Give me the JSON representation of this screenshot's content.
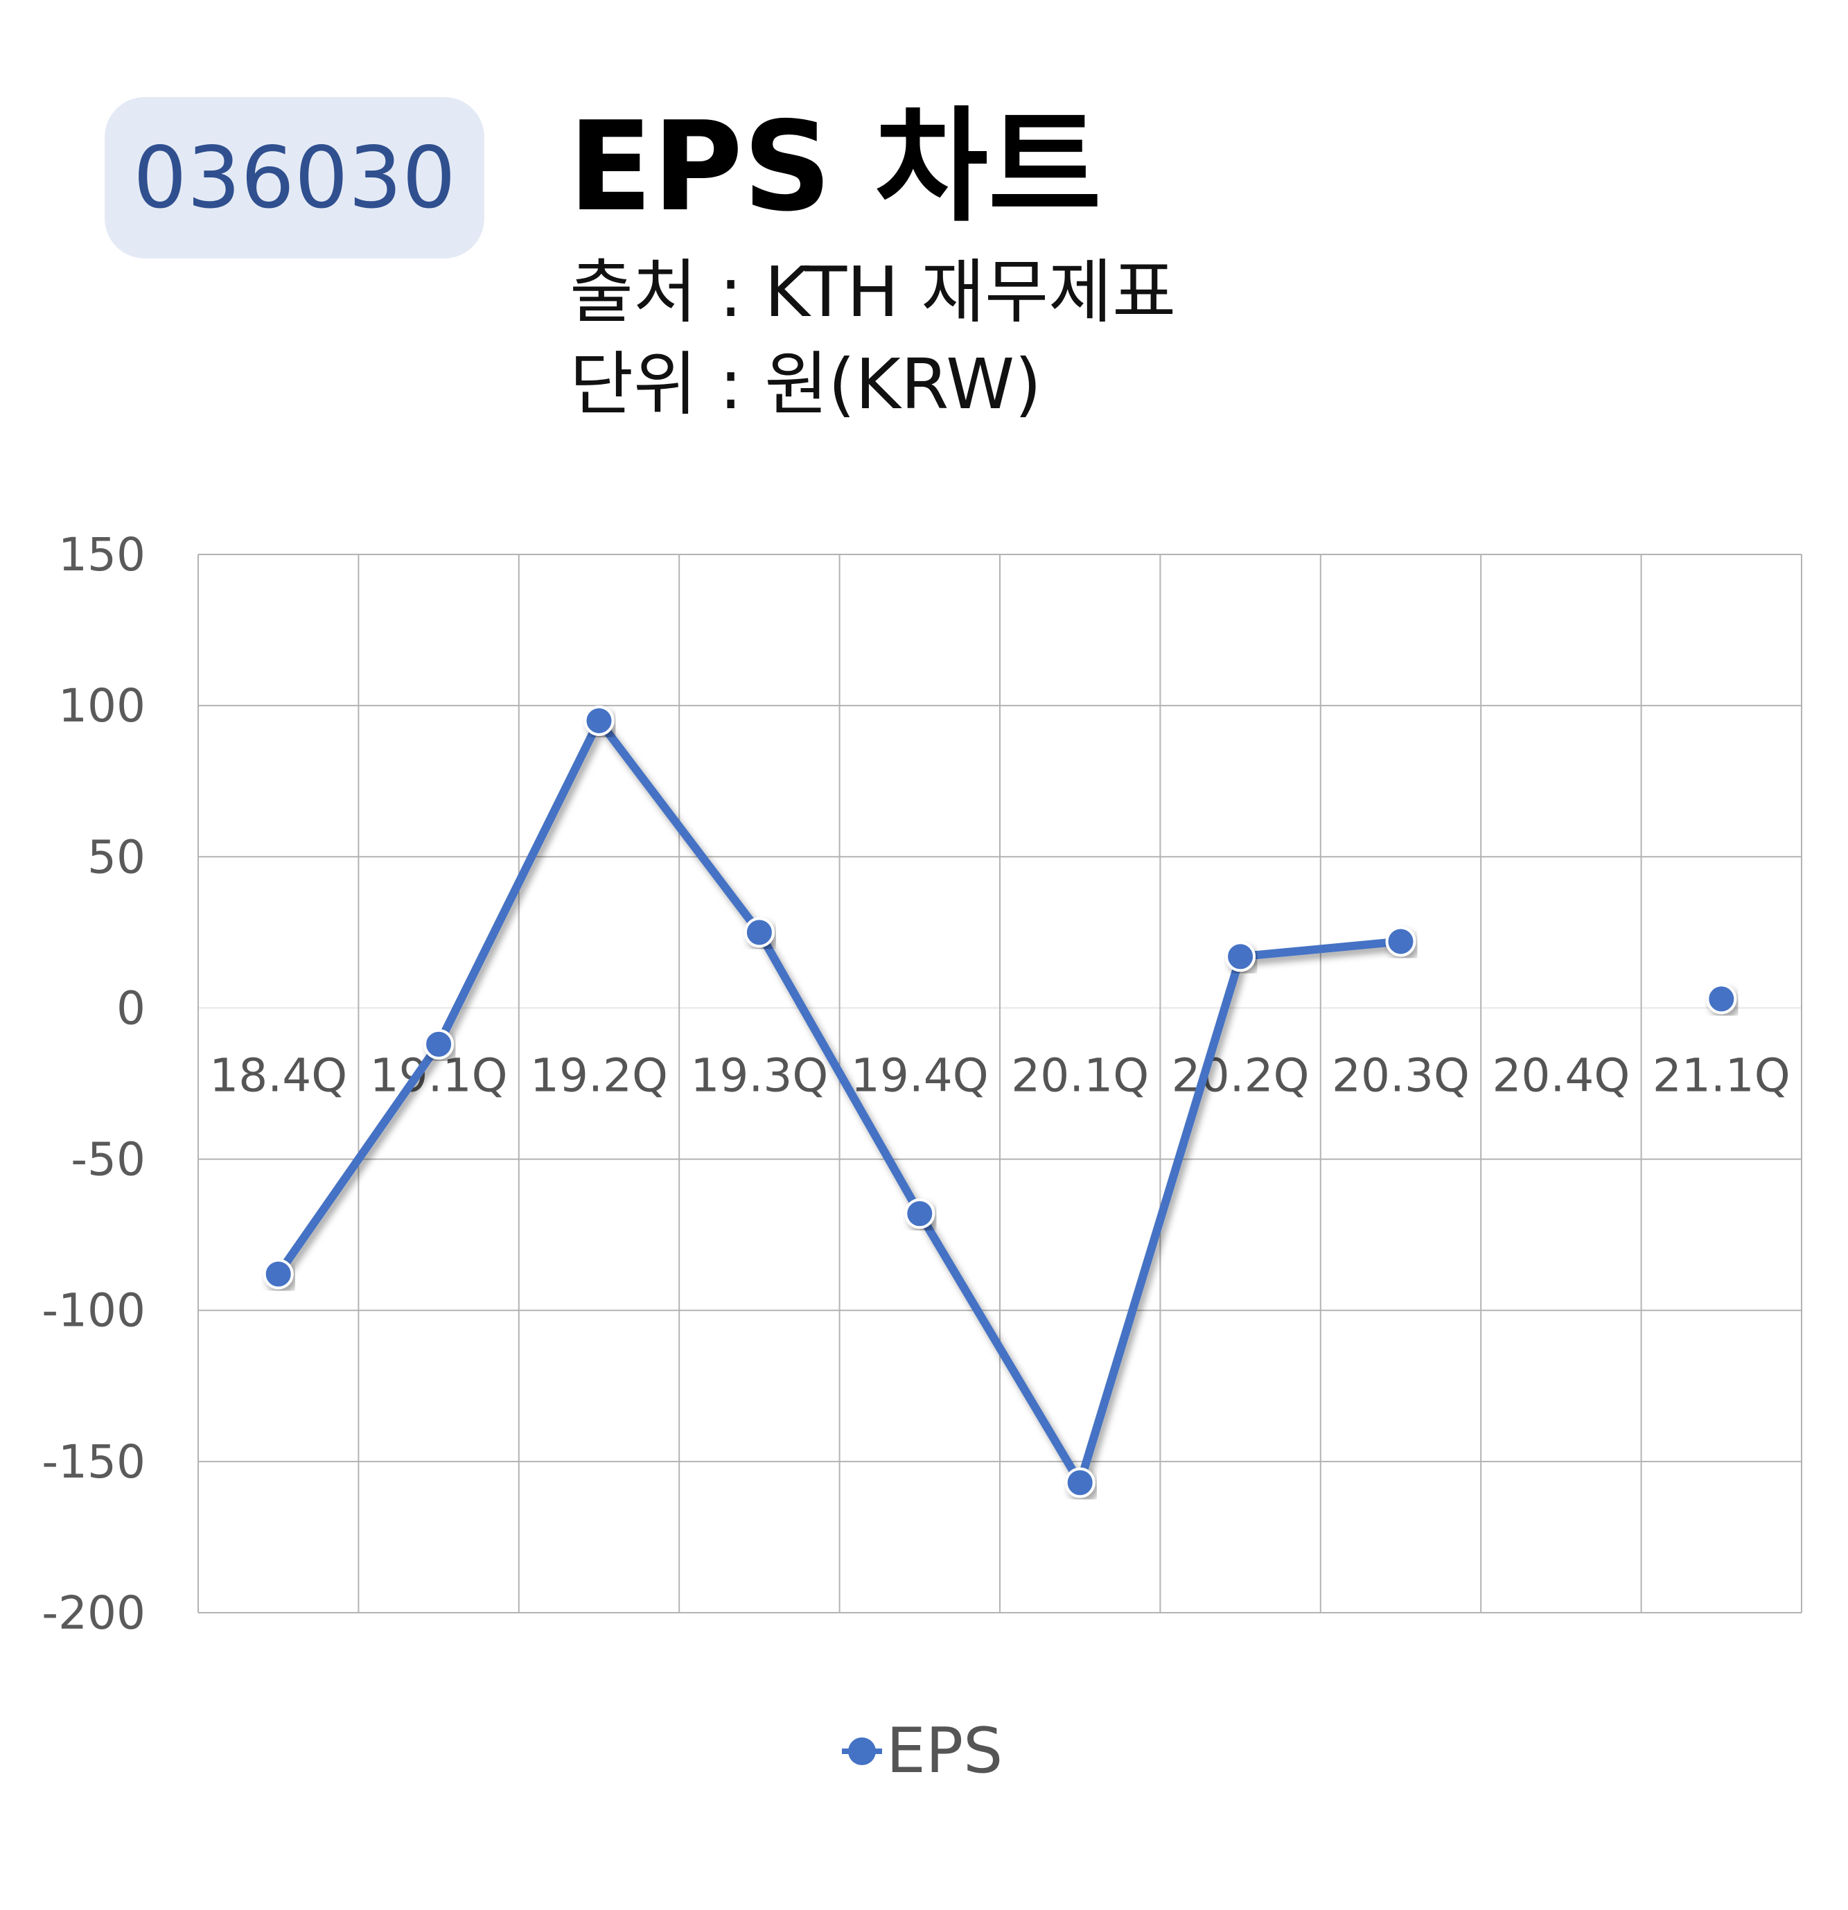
{
  "header": {
    "code": "036030",
    "title": "EPS 차트",
    "source": "출처 : KTH 재무제표",
    "unit": "단위 : 원(KRW)"
  },
  "chart_data": {
    "type": "line",
    "categories": [
      "18.4Q",
      "19.1Q",
      "19.2Q",
      "19.3Q",
      "19.4Q",
      "20.1Q",
      "20.2Q",
      "20.3Q",
      "20.4Q",
      "21.1Q"
    ],
    "series": [
      {
        "name": "EPS",
        "values": [
          -88,
          -12,
          95,
          25,
          -68,
          -157,
          17,
          22,
          null,
          3
        ]
      }
    ],
    "yticks": [
      150,
      100,
      50,
      0,
      -50,
      -100,
      -150,
      -200
    ],
    "ylim": [
      -200,
      150
    ],
    "grid": true,
    "legend": "bottom",
    "colors": {
      "series": "#4472c4"
    }
  }
}
